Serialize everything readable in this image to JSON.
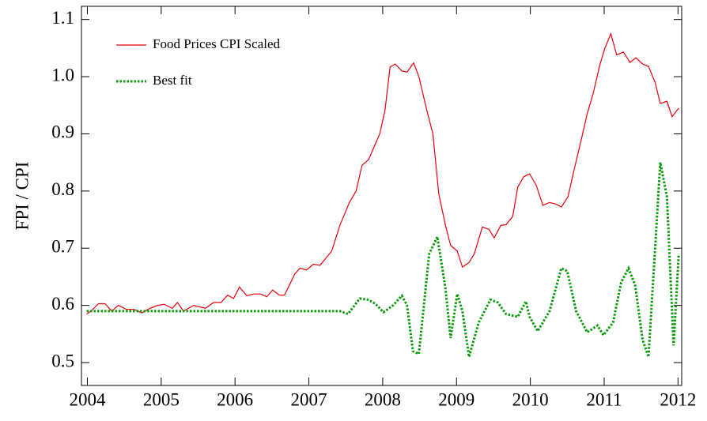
{
  "chart_data": {
    "type": "line",
    "ylabel": "FPI / CPI",
    "xlim": [
      2003.92,
      2012.05
    ],
    "ylim": [
      0.46,
      1.123
    ],
    "xticks": [
      2004,
      2005,
      2006,
      2007,
      2008,
      2009,
      2010,
      2011,
      2012
    ],
    "yticks": [
      0.5,
      0.6,
      0.7,
      0.8,
      0.9,
      1.0,
      1.1
    ],
    "yticklabels": [
      "0.5",
      "0.6",
      "0.7",
      "0.8",
      "0.9",
      "1.0",
      "1.1"
    ],
    "legend": "upper left",
    "series": [
      {
        "name": "Food Prices CPI Scaled",
        "color": "#e8000b",
        "style": "solid",
        "x": [
          2003.99,
          2004.05,
          2004.15,
          2004.24,
          2004.33,
          2004.42,
          2004.53,
          2004.63,
          2004.74,
          2004.85,
          2004.95,
          2005.04,
          2005.15,
          2005.22,
          2005.3,
          2005.44,
          2005.6,
          2005.71,
          2005.81,
          2005.9,
          2005.98,
          2006.06,
          2006.16,
          2006.26,
          2006.35,
          2006.43,
          2006.51,
          2006.6,
          2006.67,
          2006.81,
          2006.88,
          2006.97,
          2007.06,
          2007.15,
          2007.31,
          2007.42,
          2007.55,
          2007.64,
          2007.72,
          2007.81,
          2007.96,
          2008.03,
          2008.1,
          2008.17,
          2008.26,
          2008.33,
          2008.42,
          2008.49,
          2008.6,
          2008.68,
          2008.76,
          2008.85,
          2008.92,
          2009.01,
          2009.08,
          2009.17,
          2009.24,
          2009.35,
          2009.44,
          2009.51,
          2009.6,
          2009.67,
          2009.76,
          2009.83,
          2009.91,
          2009.99,
          2010.08,
          2010.17,
          2010.26,
          2010.35,
          2010.42,
          2010.51,
          2010.58,
          2010.69,
          2010.77,
          2010.85,
          2010.94,
          2011.01,
          2011.09,
          2011.17,
          2011.26,
          2011.35,
          2011.43,
          2011.52,
          2011.6,
          2011.69,
          2011.76,
          2011.85,
          2011.92,
          2012.01
        ],
        "values": [
          0.585,
          0.59,
          0.603,
          0.603,
          0.59,
          0.6,
          0.593,
          0.593,
          0.587,
          0.595,
          0.6,
          0.602,
          0.595,
          0.605,
          0.59,
          0.6,
          0.595,
          0.605,
          0.605,
          0.618,
          0.612,
          0.632,
          0.617,
          0.62,
          0.62,
          0.615,
          0.627,
          0.618,
          0.618,
          0.655,
          0.665,
          0.662,
          0.672,
          0.67,
          0.695,
          0.74,
          0.78,
          0.8,
          0.845,
          0.855,
          0.9,
          0.94,
          1.017,
          1.022,
          1.01,
          1.008,
          1.024,
          1.0,
          0.94,
          0.9,
          0.795,
          0.74,
          0.705,
          0.695,
          0.667,
          0.675,
          0.69,
          0.737,
          0.733,
          0.718,
          0.74,
          0.741,
          0.755,
          0.807,
          0.825,
          0.83,
          0.81,
          0.775,
          0.78,
          0.777,
          0.772,
          0.79,
          0.83,
          0.89,
          0.935,
          0.97,
          1.02,
          1.05,
          1.075,
          1.038,
          1.043,
          1.025,
          1.033,
          1.022,
          1.018,
          0.99,
          0.953,
          0.957,
          0.93,
          0.945
        ]
      },
      {
        "name": "Best fit",
        "color": "#0b9a0b",
        "style": "dotted",
        "x": [
          2003.99,
          2007.37,
          2007.42,
          2007.53,
          2007.69,
          2007.8,
          2007.9,
          2008.01,
          2008.14,
          2008.26,
          2008.33,
          2008.41,
          2008.49,
          2008.63,
          2008.74,
          2008.85,
          2008.92,
          2009.01,
          2009.08,
          2009.17,
          2009.3,
          2009.46,
          2009.56,
          2009.67,
          2009.83,
          2009.94,
          2009.99,
          2010.1,
          2010.26,
          2010.42,
          2010.5,
          2010.62,
          2010.77,
          2010.91,
          2010.99,
          2011.12,
          2011.23,
          2011.33,
          2011.42,
          2011.52,
          2011.6,
          2011.69,
          2011.76,
          2011.85,
          2011.94,
          2012.01
        ],
        "values": [
          0.59,
          0.59,
          0.59,
          0.585,
          0.612,
          0.61,
          0.603,
          0.588,
          0.6,
          0.617,
          0.6,
          0.52,
          0.515,
          0.69,
          0.72,
          0.63,
          0.543,
          0.62,
          0.59,
          0.51,
          0.57,
          0.61,
          0.605,
          0.585,
          0.58,
          0.607,
          0.58,
          0.555,
          0.59,
          0.665,
          0.66,
          0.59,
          0.553,
          0.565,
          0.548,
          0.57,
          0.64,
          0.665,
          0.635,
          0.54,
          0.51,
          0.7,
          0.85,
          0.79,
          0.53,
          0.69
        ]
      }
    ]
  }
}
